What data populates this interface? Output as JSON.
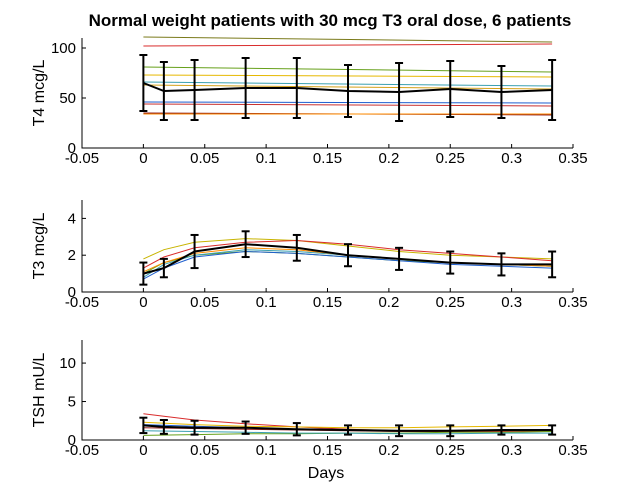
{
  "figure": {
    "title": "Normal weight patients with 30 mcg T3 oral dose, 6 patients",
    "xlabel": "Days"
  },
  "chart_data": [
    {
      "type": "line",
      "ylabel": "T4 mcg/L",
      "xlim": [
        -0.05,
        0.35
      ],
      "ylim": [
        0,
        110
      ],
      "xticks": [
        "-0.05",
        "0",
        "0.05",
        "0.1",
        "0.15",
        "0.2",
        "0.25",
        "0.3",
        "0.35"
      ],
      "yticks": [
        "0",
        "50",
        "100"
      ],
      "grid": false,
      "series": [
        {
          "color": "#7a7a1a",
          "x": [
            0,
            0.333
          ],
          "y": [
            111,
            106
          ]
        },
        {
          "color": "#d92c2c",
          "x": [
            0,
            0.333
          ],
          "y": [
            102,
            104
          ]
        },
        {
          "color": "#66a01a",
          "x": [
            0,
            0.333
          ],
          "y": [
            81,
            76
          ]
        },
        {
          "color": "#e6b800",
          "x": [
            0,
            0.333
          ],
          "y": [
            73,
            71
          ]
        },
        {
          "color": "#3aa0b0",
          "x": [
            0,
            0.333
          ],
          "y": [
            66,
            62
          ]
        },
        {
          "color": "#d4a017",
          "x": [
            0,
            0.333
          ],
          "y": [
            63,
            59
          ]
        },
        {
          "color": "#1f5fcf",
          "x": [
            0,
            0.333
          ],
          "y": [
            46,
            45
          ]
        },
        {
          "color": "#c83030",
          "x": [
            0,
            0.333
          ],
          "y": [
            44,
            42
          ]
        },
        {
          "color": "#8b1a1a",
          "x": [
            0,
            0.333
          ],
          "y": [
            35,
            33
          ]
        },
        {
          "color": "#ff8c00",
          "x": [
            0,
            0.333
          ],
          "y": [
            34,
            34
          ]
        }
      ],
      "mean": {
        "x": [
          0,
          0.0167,
          0.0417,
          0.0833,
          0.125,
          0.1667,
          0.2083,
          0.25,
          0.2917,
          0.333
        ],
        "y": [
          65,
          57,
          58,
          60,
          60,
          57,
          56,
          59,
          56,
          58
        ],
        "err": [
          28,
          29,
          30,
          30,
          30,
          26,
          29,
          28,
          26,
          30
        ]
      }
    },
    {
      "type": "line",
      "ylabel": "T3 mcg/L",
      "xlim": [
        -0.05,
        0.35
      ],
      "ylim": [
        0,
        5
      ],
      "xticks": [
        "-0.05",
        "0",
        "0.05",
        "0.1",
        "0.15",
        "0.2",
        "0.25",
        "0.3",
        "0.35"
      ],
      "yticks": [
        "0",
        "2",
        "4"
      ],
      "grid": false,
      "series": [
        {
          "color": "#c8b400",
          "x": [
            0,
            0.0167,
            0.0417,
            0.0833,
            0.125,
            0.1667,
            0.2083,
            0.25,
            0.2917,
            0.333
          ],
          "y": [
            1.8,
            2.3,
            2.7,
            2.9,
            2.8,
            2.5,
            2.2,
            2.0,
            1.9,
            1.8
          ]
        },
        {
          "color": "#d92c2c",
          "x": [
            0,
            0.0167,
            0.0417,
            0.0833,
            0.125,
            0.1667,
            0.2083,
            0.25,
            0.2917,
            0.333
          ],
          "y": [
            1.3,
            1.9,
            2.4,
            2.7,
            2.8,
            2.6,
            2.3,
            2.1,
            1.9,
            1.7
          ]
        },
        {
          "color": "#66a01a",
          "x": [
            0,
            0.0167,
            0.0417,
            0.0833,
            0.125,
            0.1667,
            0.2083,
            0.25,
            0.2917,
            0.333
          ],
          "y": [
            1.0,
            1.6,
            2.0,
            2.2,
            2.1,
            1.9,
            1.7,
            1.6,
            1.5,
            1.4
          ]
        },
        {
          "color": "#3aa0b0",
          "x": [
            0,
            0.0167,
            0.0417,
            0.0833,
            0.125,
            0.1667,
            0.2083,
            0.25,
            0.2917,
            0.333
          ],
          "y": [
            0.8,
            1.5,
            2.0,
            2.3,
            2.2,
            2.0,
            1.8,
            1.6,
            1.5,
            1.4
          ]
        },
        {
          "color": "#1f5fcf",
          "x": [
            0,
            0.0167,
            0.0417,
            0.0833,
            0.125,
            0.1667,
            0.2083,
            0.25,
            0.2917,
            0.333
          ],
          "y": [
            0.7,
            1.3,
            1.9,
            2.2,
            2.1,
            1.9,
            1.7,
            1.5,
            1.4,
            1.3
          ]
        },
        {
          "color": "#ff8c00",
          "x": [
            0,
            0.0167,
            0.0417,
            0.0833,
            0.125,
            0.1667,
            0.2083,
            0.25,
            0.2917,
            0.333
          ],
          "y": [
            1.1,
            1.6,
            2.1,
            2.4,
            2.3,
            2.0,
            1.8,
            1.6,
            1.5,
            1.4
          ]
        }
      ],
      "mean": {
        "x": [
          0,
          0.0167,
          0.0417,
          0.0833,
          0.125,
          0.1667,
          0.2083,
          0.25,
          0.2917,
          0.333
        ],
        "y": [
          1.0,
          1.3,
          2.2,
          2.6,
          2.4,
          2.0,
          1.8,
          1.6,
          1.5,
          1.5
        ],
        "err": [
          0.6,
          0.5,
          0.9,
          0.7,
          0.7,
          0.6,
          0.6,
          0.6,
          0.6,
          0.7
        ]
      }
    },
    {
      "type": "line",
      "ylabel": "TSH mU/L",
      "xlim": [
        -0.05,
        0.35
      ],
      "ylim": [
        0,
        13
      ],
      "xticks": [
        "-0.05",
        "0",
        "0.05",
        "0.1",
        "0.15",
        "0.2",
        "0.25",
        "0.3",
        "0.35"
      ],
      "yticks": [
        "0",
        "5",
        "10"
      ],
      "grid": false,
      "series": [
        {
          "color": "#d92c2c",
          "x": [
            0,
            0.0417,
            0.0833,
            0.125,
            0.1667,
            0.2083,
            0.25,
            0.2917,
            0.333
          ],
          "y": [
            3.4,
            2.6,
            2.1,
            1.7,
            1.4,
            1.2,
            1.1,
            1.1,
            1.2
          ]
        },
        {
          "color": "#e6b800",
          "x": [
            0,
            0.0417,
            0.0833,
            0.125,
            0.1667,
            0.2083,
            0.25,
            0.2917,
            0.333
          ],
          "y": [
            2.3,
            2.0,
            1.8,
            1.7,
            1.6,
            1.6,
            1.7,
            1.8,
            1.9
          ]
        },
        {
          "color": "#1f5fcf",
          "x": [
            0,
            0.0417,
            0.0833,
            0.125,
            0.1667,
            0.2083,
            0.25,
            0.2917,
            0.333
          ],
          "y": [
            2.0,
            1.8,
            1.6,
            1.4,
            1.3,
            1.2,
            1.2,
            1.3,
            1.3
          ]
        },
        {
          "color": "#8b1a1a",
          "x": [
            0,
            0.0417,
            0.0833,
            0.125,
            0.1667,
            0.2083,
            0.25,
            0.2917,
            0.333
          ],
          "y": [
            1.6,
            1.5,
            1.4,
            1.3,
            1.2,
            1.1,
            1.1,
            1.2,
            1.2
          ]
        },
        {
          "color": "#66a01a",
          "x": [
            0,
            0.0417,
            0.0833,
            0.125,
            0.1667,
            0.2083,
            0.25,
            0.2917,
            0.333
          ],
          "y": [
            0.6,
            0.7,
            0.8,
            0.8,
            0.9,
            0.9,
            1.0,
            1.0,
            1.1
          ]
        },
        {
          "color": "#3aa0b0",
          "x": [
            0,
            0.0417,
            0.0833,
            0.125,
            0.1667,
            0.2083,
            0.25,
            0.2917,
            0.333
          ],
          "y": [
            1.2,
            1.1,
            1.0,
            0.9,
            0.9,
            0.8,
            0.8,
            0.9,
            0.9
          ]
        }
      ],
      "mean": {
        "x": [
          0,
          0.0167,
          0.0417,
          0.0833,
          0.125,
          0.1667,
          0.2083,
          0.25,
          0.2917,
          0.333
        ],
        "y": [
          1.9,
          1.7,
          1.6,
          1.6,
          1.4,
          1.3,
          1.2,
          1.2,
          1.3,
          1.3
        ],
        "err": [
          1.0,
          0.9,
          0.9,
          0.8,
          0.8,
          0.6,
          0.7,
          0.7,
          0.6,
          0.6
        ]
      }
    }
  ]
}
